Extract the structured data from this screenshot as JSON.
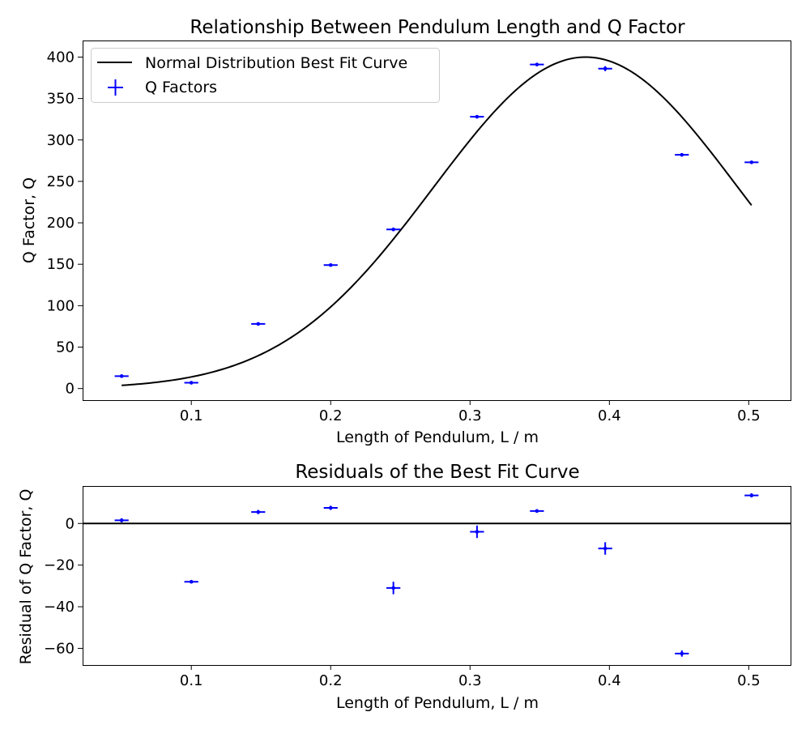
{
  "chart_data": [
    {
      "type": "scatter",
      "title": "Relationship Between Pendulum Length and Q Factor",
      "xlabel": "Length of Pendulum, L / m",
      "ylabel": "Q Factor, Q",
      "xlim": [
        0.022,
        0.53
      ],
      "ylim": [
        -14,
        420
      ],
      "xticks": [
        "0.1",
        "0.2",
        "0.3",
        "0.4",
        "0.5"
      ],
      "yticks": [
        "0",
        "50",
        "100",
        "150",
        "200",
        "250",
        "300",
        "350",
        "400"
      ],
      "legend": {
        "location": "upper-left",
        "entries": [
          "Normal Distribution Best Fit Curve",
          "Q Factors"
        ]
      },
      "fit_curve": {
        "name": "Normal Distribution Best Fit Curve",
        "color": "#000000",
        "amplitude": 400,
        "mean": 0.383,
        "sigma": 0.1093,
        "x_range": [
          0.05,
          0.502
        ]
      },
      "series": [
        {
          "name": "Q Factors",
          "color": "#0000ff",
          "marker": "point-with-errorbars",
          "x": [
            0.05,
            0.1,
            0.148,
            0.2,
            0.245,
            0.305,
            0.348,
            0.397,
            0.452,
            0.502
          ],
          "y": [
            15,
            7,
            78,
            149,
            192,
            328,
            391,
            386,
            282,
            273
          ],
          "x_err": [
            0.005,
            0.005,
            0.005,
            0.005,
            0.005,
            0.005,
            0.005,
            0.005,
            0.005,
            0.005
          ],
          "y_err": [
            1,
            1,
            1,
            1,
            2,
            2,
            1,
            3,
            1,
            1
          ]
        }
      ]
    },
    {
      "type": "scatter",
      "title": "Residuals of the Best Fit Curve",
      "xlabel": "Length of Pendulum, L / m",
      "ylabel": "Residual of Q Factor, Q",
      "xlim": [
        0.022,
        0.53
      ],
      "ylim": [
        -68,
        18
      ],
      "xticks": [
        "0.1",
        "0.2",
        "0.3",
        "0.4",
        "0.5"
      ],
      "yticks": [
        "0",
        "−20",
        "−40",
        "−60"
      ],
      "zero_line": true,
      "series": [
        {
          "name": "Residuals",
          "color": "#0000ff",
          "marker": "point-with-errorbars",
          "x": [
            0.05,
            0.1,
            0.148,
            0.2,
            0.245,
            0.305,
            0.348,
            0.397,
            0.452,
            0.502
          ],
          "y": [
            1.5,
            -28,
            5.5,
            7.5,
            -31,
            -4,
            6,
            -12,
            -62.5,
            13.5
          ],
          "x_err": [
            0.005,
            0.005,
            0.005,
            0.005,
            0.005,
            0.005,
            0.005,
            0.005,
            0.005,
            0.005
          ],
          "y_err": [
            1,
            0.7,
            1,
            1,
            3,
            3,
            0.7,
            3,
            1.5,
            1
          ]
        }
      ]
    }
  ]
}
